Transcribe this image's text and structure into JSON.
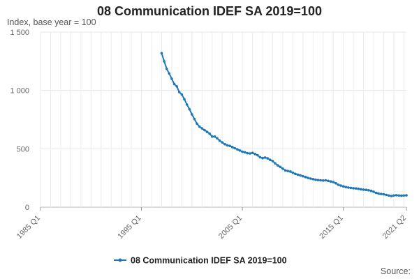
{
  "chart_data": {
    "type": "line",
    "title": "08 Communication IDEF SA 2019=100",
    "ylabel": "Index, base year = 100",
    "xlabel": "",
    "source_label": "Source:",
    "x_ticks": [
      "1985 Q1",
      "1995 Q1",
      "2005 Q1",
      "2015 Q1",
      "2021 Q2"
    ],
    "y_ticks": [
      "0",
      "500",
      "1 000",
      "1 500"
    ],
    "y_tick_values": [
      0,
      500,
      1000,
      1500
    ],
    "ylim": [
      0,
      1500
    ],
    "xlim": [
      "1985 Q1",
      "2021 Q2"
    ],
    "grid": true,
    "legend_position": "bottom",
    "series": [
      {
        "name": "08 Communication IDEF SA 2019=100",
        "color": "#1f77b4",
        "points": [
          [
            "1997 Q1",
            1320
          ],
          [
            "1997 Q2",
            1250
          ],
          [
            "1997 Q3",
            1185
          ],
          [
            "1997 Q4",
            1145
          ],
          [
            "1998 Q1",
            1100
          ],
          [
            "1998 Q2",
            1055
          ],
          [
            "1998 Q3",
            1035
          ],
          [
            "1998 Q4",
            985
          ],
          [
            "1999 Q1",
            965
          ],
          [
            "1999 Q2",
            925
          ],
          [
            "1999 Q3",
            880
          ],
          [
            "1999 Q4",
            840
          ],
          [
            "2000 Q1",
            795
          ],
          [
            "2000 Q2",
            755
          ],
          [
            "2000 Q3",
            715
          ],
          [
            "2000 Q4",
            690
          ],
          [
            "2001 Q1",
            675
          ],
          [
            "2001 Q2",
            660
          ],
          [
            "2001 Q3",
            645
          ],
          [
            "2001 Q4",
            630
          ],
          [
            "2002 Q1",
            605
          ],
          [
            "2002 Q2",
            605
          ],
          [
            "2002 Q3",
            590
          ],
          [
            "2002 Q4",
            570
          ],
          [
            "2003 Q1",
            555
          ],
          [
            "2003 Q2",
            540
          ],
          [
            "2003 Q3",
            530
          ],
          [
            "2003 Q4",
            525
          ],
          [
            "2004 Q1",
            515
          ],
          [
            "2004 Q2",
            505
          ],
          [
            "2004 Q3",
            495
          ],
          [
            "2004 Q4",
            485
          ],
          [
            "2005 Q1",
            475
          ],
          [
            "2005 Q2",
            470
          ],
          [
            "2005 Q3",
            462
          ],
          [
            "2005 Q4",
            460
          ],
          [
            "2006 Q1",
            465
          ],
          [
            "2006 Q2",
            455
          ],
          [
            "2006 Q3",
            445
          ],
          [
            "2006 Q4",
            428
          ],
          [
            "2007 Q1",
            420
          ],
          [
            "2007 Q2",
            425
          ],
          [
            "2007 Q3",
            418
          ],
          [
            "2007 Q4",
            405
          ],
          [
            "2008 Q1",
            395
          ],
          [
            "2008 Q2",
            375
          ],
          [
            "2008 Q3",
            358
          ],
          [
            "2008 Q4",
            345
          ],
          [
            "2009 Q1",
            330
          ],
          [
            "2009 Q2",
            315
          ],
          [
            "2009 Q3",
            310
          ],
          [
            "2009 Q4",
            305
          ],
          [
            "2010 Q1",
            295
          ],
          [
            "2010 Q2",
            285
          ],
          [
            "2010 Q3",
            278
          ],
          [
            "2010 Q4",
            272
          ],
          [
            "2011 Q1",
            265
          ],
          [
            "2011 Q2",
            258
          ],
          [
            "2011 Q3",
            250
          ],
          [
            "2011 Q4",
            245
          ],
          [
            "2012 Q1",
            240
          ],
          [
            "2012 Q2",
            235
          ],
          [
            "2012 Q3",
            232
          ],
          [
            "2012 Q4",
            230
          ],
          [
            "2013 Q1",
            228
          ],
          [
            "2013 Q2",
            230
          ],
          [
            "2013 Q3",
            225
          ],
          [
            "2013 Q4",
            220
          ],
          [
            "2014 Q1",
            215
          ],
          [
            "2014 Q2",
            205
          ],
          [
            "2014 Q3",
            192
          ],
          [
            "2014 Q4",
            185
          ],
          [
            "2015 Q1",
            178
          ],
          [
            "2015 Q2",
            172
          ],
          [
            "2015 Q3",
            168
          ],
          [
            "2015 Q4",
            165
          ],
          [
            "2016 Q1",
            162
          ],
          [
            "2016 Q2",
            160
          ],
          [
            "2016 Q3",
            157
          ],
          [
            "2016 Q4",
            153
          ],
          [
            "2017 Q1",
            150
          ],
          [
            "2017 Q2",
            148
          ],
          [
            "2017 Q3",
            145
          ],
          [
            "2017 Q4",
            140
          ],
          [
            "2018 Q1",
            132
          ],
          [
            "2018 Q2",
            122
          ],
          [
            "2018 Q3",
            116
          ],
          [
            "2018 Q4",
            113
          ],
          [
            "2019 Q1",
            110
          ],
          [
            "2019 Q2",
            105
          ],
          [
            "2019 Q3",
            100
          ],
          [
            "2019 Q4",
            95
          ],
          [
            "2020 Q1",
            100
          ],
          [
            "2020 Q2",
            102
          ],
          [
            "2020 Q3",
            100
          ],
          [
            "2020 Q4",
            98
          ],
          [
            "2021 Q1",
            100
          ],
          [
            "2021 Q2",
            101
          ]
        ]
      }
    ]
  }
}
